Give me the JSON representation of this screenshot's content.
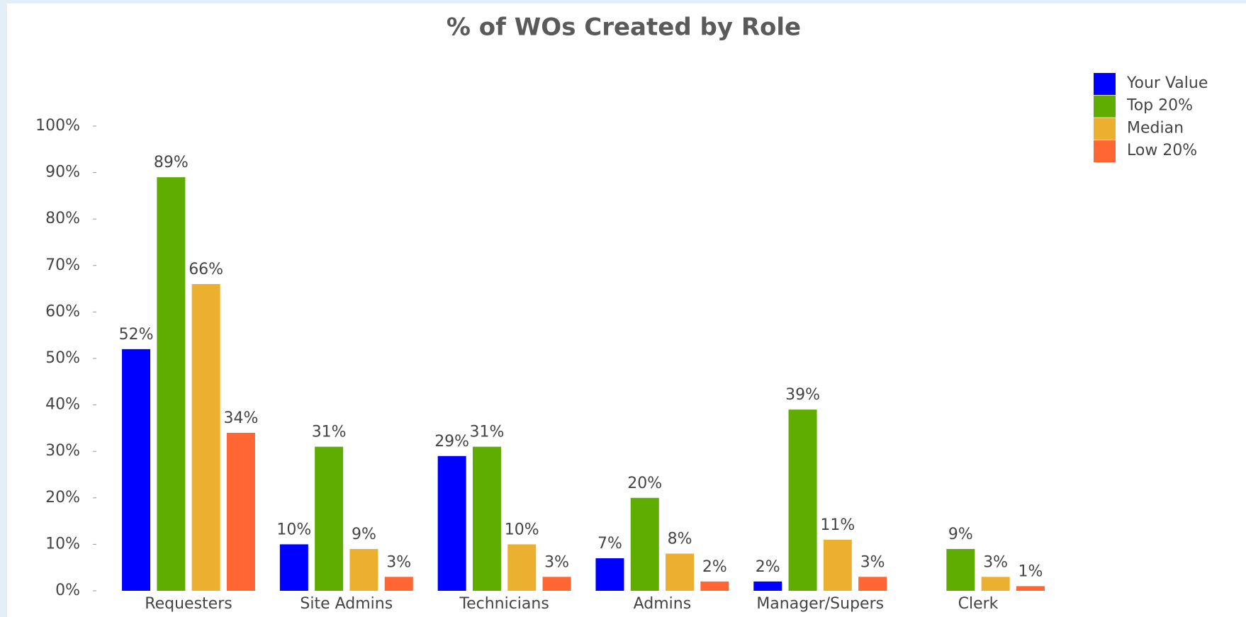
{
  "chart_data": {
    "type": "bar",
    "title": "% of WOs Created by Role",
    "categories": [
      "Requesters",
      "Site Admins",
      "Technicians",
      "Admins",
      "Manager/Supers",
      "Clerk"
    ],
    "series": [
      {
        "name": "Your Value",
        "color": "#0000ff",
        "values": [
          52,
          10,
          29,
          7,
          2,
          null
        ],
        "value_labels": [
          "52%",
          "10%",
          "29%",
          "7%",
          "2%",
          null
        ]
      },
      {
        "name": "Top 20%",
        "color": "#5fad00",
        "values": [
          89,
          31,
          31,
          20,
          39,
          9
        ],
        "value_labels": [
          "89%",
          "31%",
          "31%",
          "20%",
          "39%",
          "9%"
        ]
      },
      {
        "name": "Median",
        "color": "#ebb030",
        "values": [
          66,
          9,
          10,
          8,
          11,
          3
        ],
        "value_labels": [
          "66%",
          "9%",
          "10%",
          "8%",
          "11%",
          "3%"
        ]
      },
      {
        "name": "Low 20%",
        "color": "#ff6633",
        "values": [
          34,
          3,
          3,
          2,
          3,
          1
        ],
        "value_labels": [
          "34%",
          "3%",
          "3%",
          "2%",
          "3%",
          "1%"
        ]
      }
    ],
    "ylim": [
      0,
      100
    ],
    "yticks": [
      {
        "value": 0,
        "label": "0%"
      },
      {
        "value": 10,
        "label": "10%"
      },
      {
        "value": 20,
        "label": "20%"
      },
      {
        "value": 30,
        "label": "30%"
      },
      {
        "value": 40,
        "label": "40%"
      },
      {
        "value": 50,
        "label": "50%"
      },
      {
        "value": 60,
        "label": "60%"
      },
      {
        "value": 70,
        "label": "70%"
      },
      {
        "value": 80,
        "label": "80%"
      },
      {
        "value": 90,
        "label": "90%"
      },
      {
        "value": 100,
        "label": "100%"
      }
    ],
    "legend": "top-right",
    "grid": false
  }
}
